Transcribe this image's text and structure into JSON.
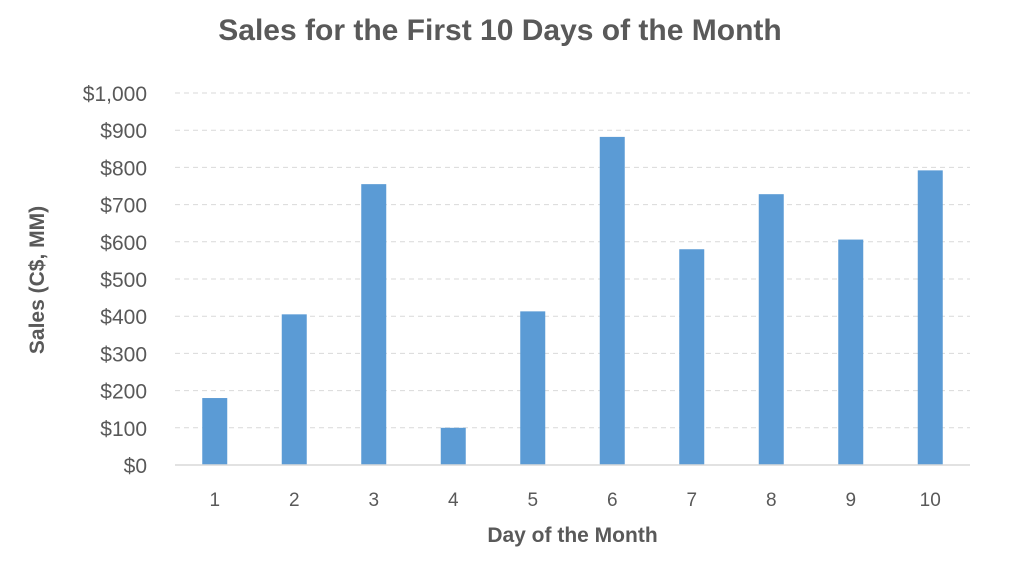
{
  "chart_data": {
    "type": "bar",
    "title": "Sales for the First 10 Days of the Month",
    "xlabel": "Day of the Month",
    "ylabel": "Sales (C$, MM)",
    "categories": [
      "1",
      "2",
      "3",
      "4",
      "5",
      "6",
      "7",
      "8",
      "9",
      "10"
    ],
    "values": [
      180,
      405,
      755,
      100,
      413,
      882,
      580,
      728,
      606,
      792
    ],
    "ylim": [
      0,
      1000
    ],
    "yticks": [
      0,
      100,
      200,
      300,
      400,
      500,
      600,
      700,
      800,
      900,
      1000
    ],
    "ytick_labels": [
      "$0",
      "$100",
      "$200",
      "$300",
      "$400",
      "$500",
      "$600",
      "$700",
      "$800",
      "$900",
      "$1,000"
    ],
    "grid": true,
    "legend": "none",
    "bar_color": "#5B9BD5"
  }
}
